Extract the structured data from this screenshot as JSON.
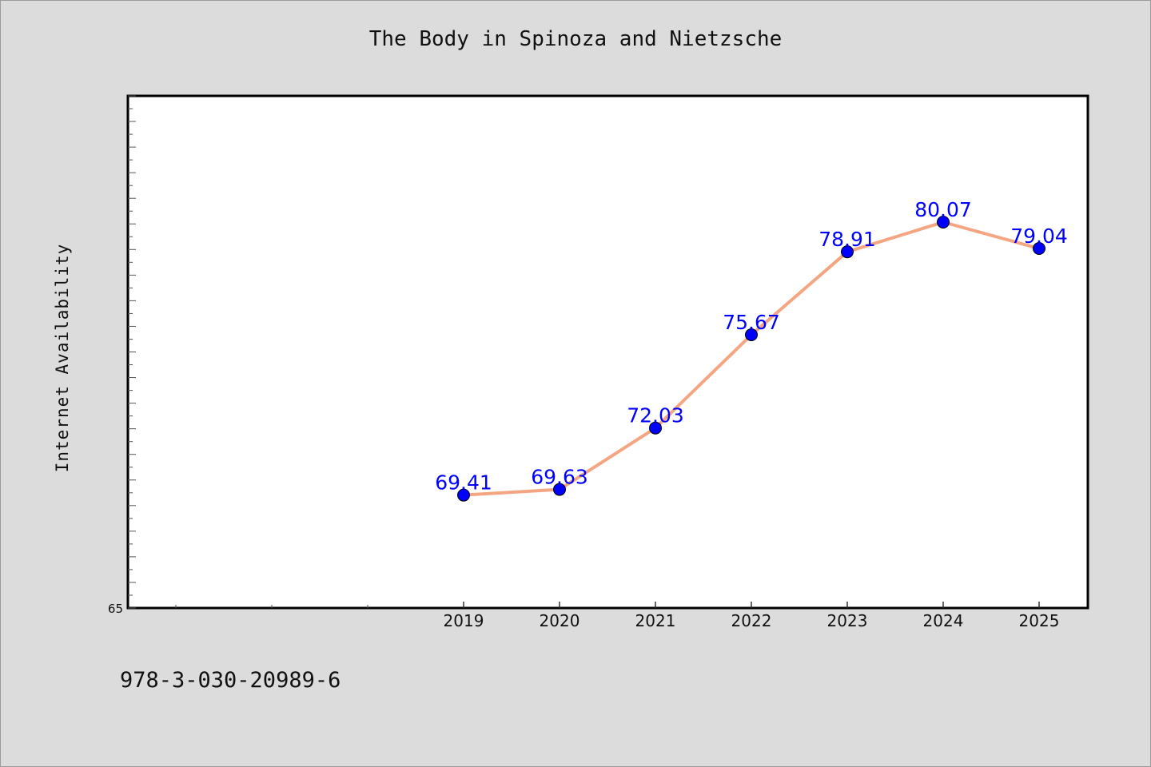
{
  "chart_data": {
    "type": "line",
    "title": "The Body in Spinoza and Nietzsche",
    "xlabel": "",
    "ylabel": "Internet Availability",
    "x": [
      "2019",
      "2020",
      "2021",
      "2022",
      "2023",
      "2024",
      "2025"
    ],
    "series": [
      {
        "values": [
          69.41,
          69.63,
          72.03,
          75.67,
          78.91,
          80.07,
          79.04
        ],
        "labels": [
          "69.41",
          "69.63",
          "72.03",
          "75.67",
          "78.91",
          "80.07",
          "79.04"
        ]
      }
    ],
    "xlim": [
      2015.5,
      2025.5
    ],
    "ylim": [
      65,
      85
    ],
    "y_tick_labels": [
      "65"
    ],
    "grid": false,
    "legend": "none",
    "colors": {
      "line": "#f4a582",
      "marker": "#0000ff",
      "data_label": "#0000ff",
      "background": "#dcdcdc",
      "plot_area": "#ffffff"
    }
  },
  "footer": {
    "code": "978-3-030-20989-6"
  }
}
